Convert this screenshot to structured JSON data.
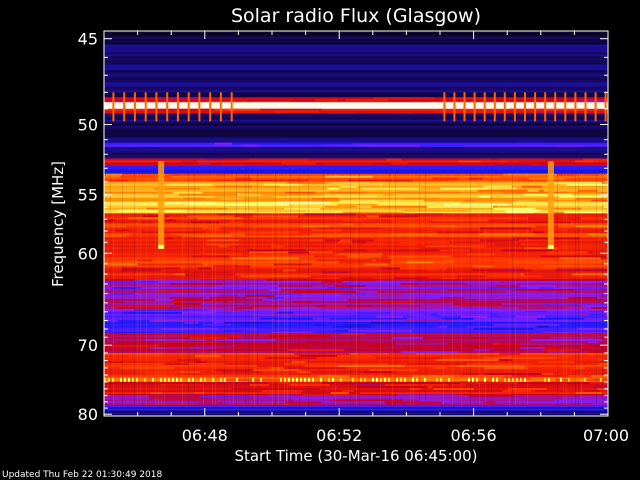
{
  "chart_data": {
    "type": "heatmap",
    "title": "Solar radio Flux (Glasgow)",
    "xlabel": "Start Time (30-Mar-16 06:45:00)",
    "ylabel": "Frequency [MHz]",
    "x_ticks": [
      "06:48",
      "06:52",
      "06:56",
      "07:00"
    ],
    "x_tick_minutes": [
      3,
      7,
      11,
      15
    ],
    "x_range_minutes": [
      0,
      15
    ],
    "y_ticks": [
      45,
      50,
      55,
      60,
      70,
      80
    ],
    "y_range_mhz": [
      44.6,
      80.3
    ],
    "y_scale": "reciprocal",
    "frequency_bands_mhz": [
      {
        "from": 44.6,
        "to": 45.3,
        "level": 0.05
      },
      {
        "from": 45.3,
        "to": 48.3,
        "level": 0.12
      },
      {
        "from": 48.3,
        "to": 48.6,
        "level": 0.55
      },
      {
        "from": 48.6,
        "to": 49.0,
        "level": 1.0
      },
      {
        "from": 49.0,
        "to": 49.3,
        "level": 0.6
      },
      {
        "from": 49.3,
        "to": 51.2,
        "level": 0.12
      },
      {
        "from": 51.2,
        "to": 51.5,
        "level": 0.3
      },
      {
        "from": 51.5,
        "to": 52.3,
        "level": 0.1
      },
      {
        "from": 52.3,
        "to": 52.8,
        "level": 0.55
      },
      {
        "from": 52.8,
        "to": 53.4,
        "level": 0.25
      },
      {
        "from": 53.4,
        "to": 54.0,
        "level": 0.7
      },
      {
        "from": 54.0,
        "to": 56.5,
        "level": 0.8
      },
      {
        "from": 56.5,
        "to": 62.5,
        "level": 0.62
      },
      {
        "from": 62.5,
        "to": 66.0,
        "level": 0.42
      },
      {
        "from": 66.0,
        "to": 68.5,
        "level": 0.3
      },
      {
        "from": 68.5,
        "to": 71.0,
        "level": 0.5
      },
      {
        "from": 71.0,
        "to": 74.0,
        "level": 0.6
      },
      {
        "from": 74.0,
        "to": 75.0,
        "level": 0.7
      },
      {
        "from": 75.0,
        "to": 77.0,
        "level": 0.55
      },
      {
        "from": 77.0,
        "to": 78.5,
        "level": 0.42
      },
      {
        "from": 78.5,
        "to": 79.4,
        "level": 0.25
      },
      {
        "from": 79.4,
        "to": 80.3,
        "level": 0.15
      }
    ],
    "bursts": [
      {
        "minute": 1.7,
        "from_mhz": 52.5,
        "to_mhz": 59.5
      },
      {
        "minute": 13.3,
        "from_mhz": 52.5,
        "to_mhz": 59.5
      }
    ],
    "colormap": [
      "#000000",
      "#1a0a6e",
      "#1a1aff",
      "#8a20ff",
      "#c8001a",
      "#ff2a00",
      "#ff8a00",
      "#ffff60",
      "#ffffff"
    ]
  },
  "footer": {
    "updated": "Updated Thu Feb 22 01:30:49 2018"
  }
}
